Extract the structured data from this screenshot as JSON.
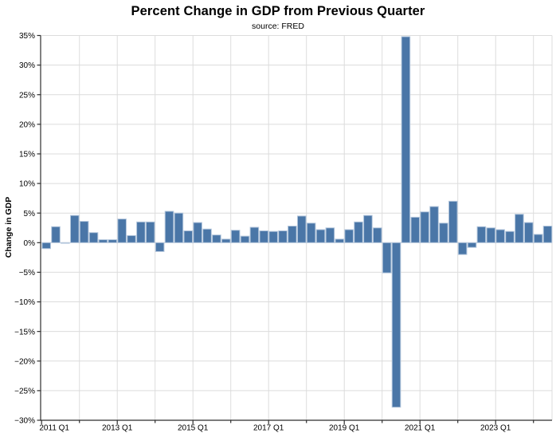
{
  "chart_data": {
    "type": "bar",
    "title": "Percent Change in GDP from Previous Quarter",
    "subtitle": "source: FRED",
    "ylabel": "Change in GDP",
    "xlabel": "",
    "ylim": [
      -30,
      35
    ],
    "ytick_step": 5,
    "grid": true,
    "legend_position": "none",
    "bar_color": "#4a76a7",
    "bar_edge_color": "#b3c6dc",
    "grid_color": "#dcdcdc",
    "axis_color": "#2e2e2e",
    "text_color": "#000000",
    "yticks": [
      {
        "value": 35,
        "label": "35%"
      },
      {
        "value": 30,
        "label": "30%"
      },
      {
        "value": 25,
        "label": "25%"
      },
      {
        "value": 20,
        "label": "20%"
      },
      {
        "value": 15,
        "label": "15%"
      },
      {
        "value": 10,
        "label": "10%"
      },
      {
        "value": 5,
        "label": "5%"
      },
      {
        "value": 0,
        "label": "0%"
      },
      {
        "value": -5,
        "label": "−5%"
      },
      {
        "value": -10,
        "label": "−10%"
      },
      {
        "value": -15,
        "label": "−15%"
      },
      {
        "value": -20,
        "label": "−20%"
      },
      {
        "value": -25,
        "label": "−25%"
      },
      {
        "value": -30,
        "label": "−30%"
      }
    ],
    "x_major_ticks": [
      "2011 Q1",
      "2013 Q1",
      "2015 Q1",
      "2017 Q1",
      "2019 Q1",
      "2021 Q1",
      "2023 Q1"
    ],
    "categories": [
      "2011 Q1",
      "2011 Q2",
      "2011 Q3",
      "2011 Q4",
      "2012 Q1",
      "2012 Q2",
      "2012 Q3",
      "2012 Q4",
      "2013 Q1",
      "2013 Q2",
      "2013 Q3",
      "2013 Q4",
      "2014 Q1",
      "2014 Q2",
      "2014 Q3",
      "2014 Q4",
      "2015 Q1",
      "2015 Q2",
      "2015 Q3",
      "2015 Q4",
      "2016 Q1",
      "2016 Q2",
      "2016 Q3",
      "2016 Q4",
      "2017 Q1",
      "2017 Q2",
      "2017 Q3",
      "2017 Q4",
      "2018 Q1",
      "2018 Q2",
      "2018 Q3",
      "2018 Q4",
      "2019 Q1",
      "2019 Q2",
      "2019 Q3",
      "2019 Q4",
      "2020 Q1",
      "2020 Q2",
      "2020 Q3",
      "2020 Q4",
      "2021 Q1",
      "2021 Q2",
      "2021 Q3",
      "2021 Q4",
      "2022 Q1",
      "2022 Q2",
      "2022 Q3",
      "2022 Q4",
      "2023 Q1",
      "2023 Q2",
      "2023 Q3",
      "2023 Q4",
      "2024 Q1",
      "2024 Q2"
    ],
    "values": [
      -1.0,
      2.7,
      -0.1,
      4.6,
      3.6,
      1.7,
      0.5,
      0.5,
      4.0,
      1.2,
      3.5,
      3.5,
      -1.5,
      5.3,
      5.0,
      2.0,
      3.4,
      2.3,
      1.3,
      0.6,
      2.1,
      1.1,
      2.6,
      2.0,
      1.9,
      2.0,
      2.8,
      4.5,
      3.3,
      2.2,
      2.5,
      0.6,
      2.2,
      3.5,
      4.6,
      2.5,
      -5.1,
      -27.8,
      34.8,
      4.3,
      5.2,
      6.1,
      3.3,
      7.0,
      -2.0,
      -0.8,
      2.7,
      2.5,
      2.2,
      1.9,
      4.8,
      3.4,
      1.4,
      2.8
    ]
  }
}
